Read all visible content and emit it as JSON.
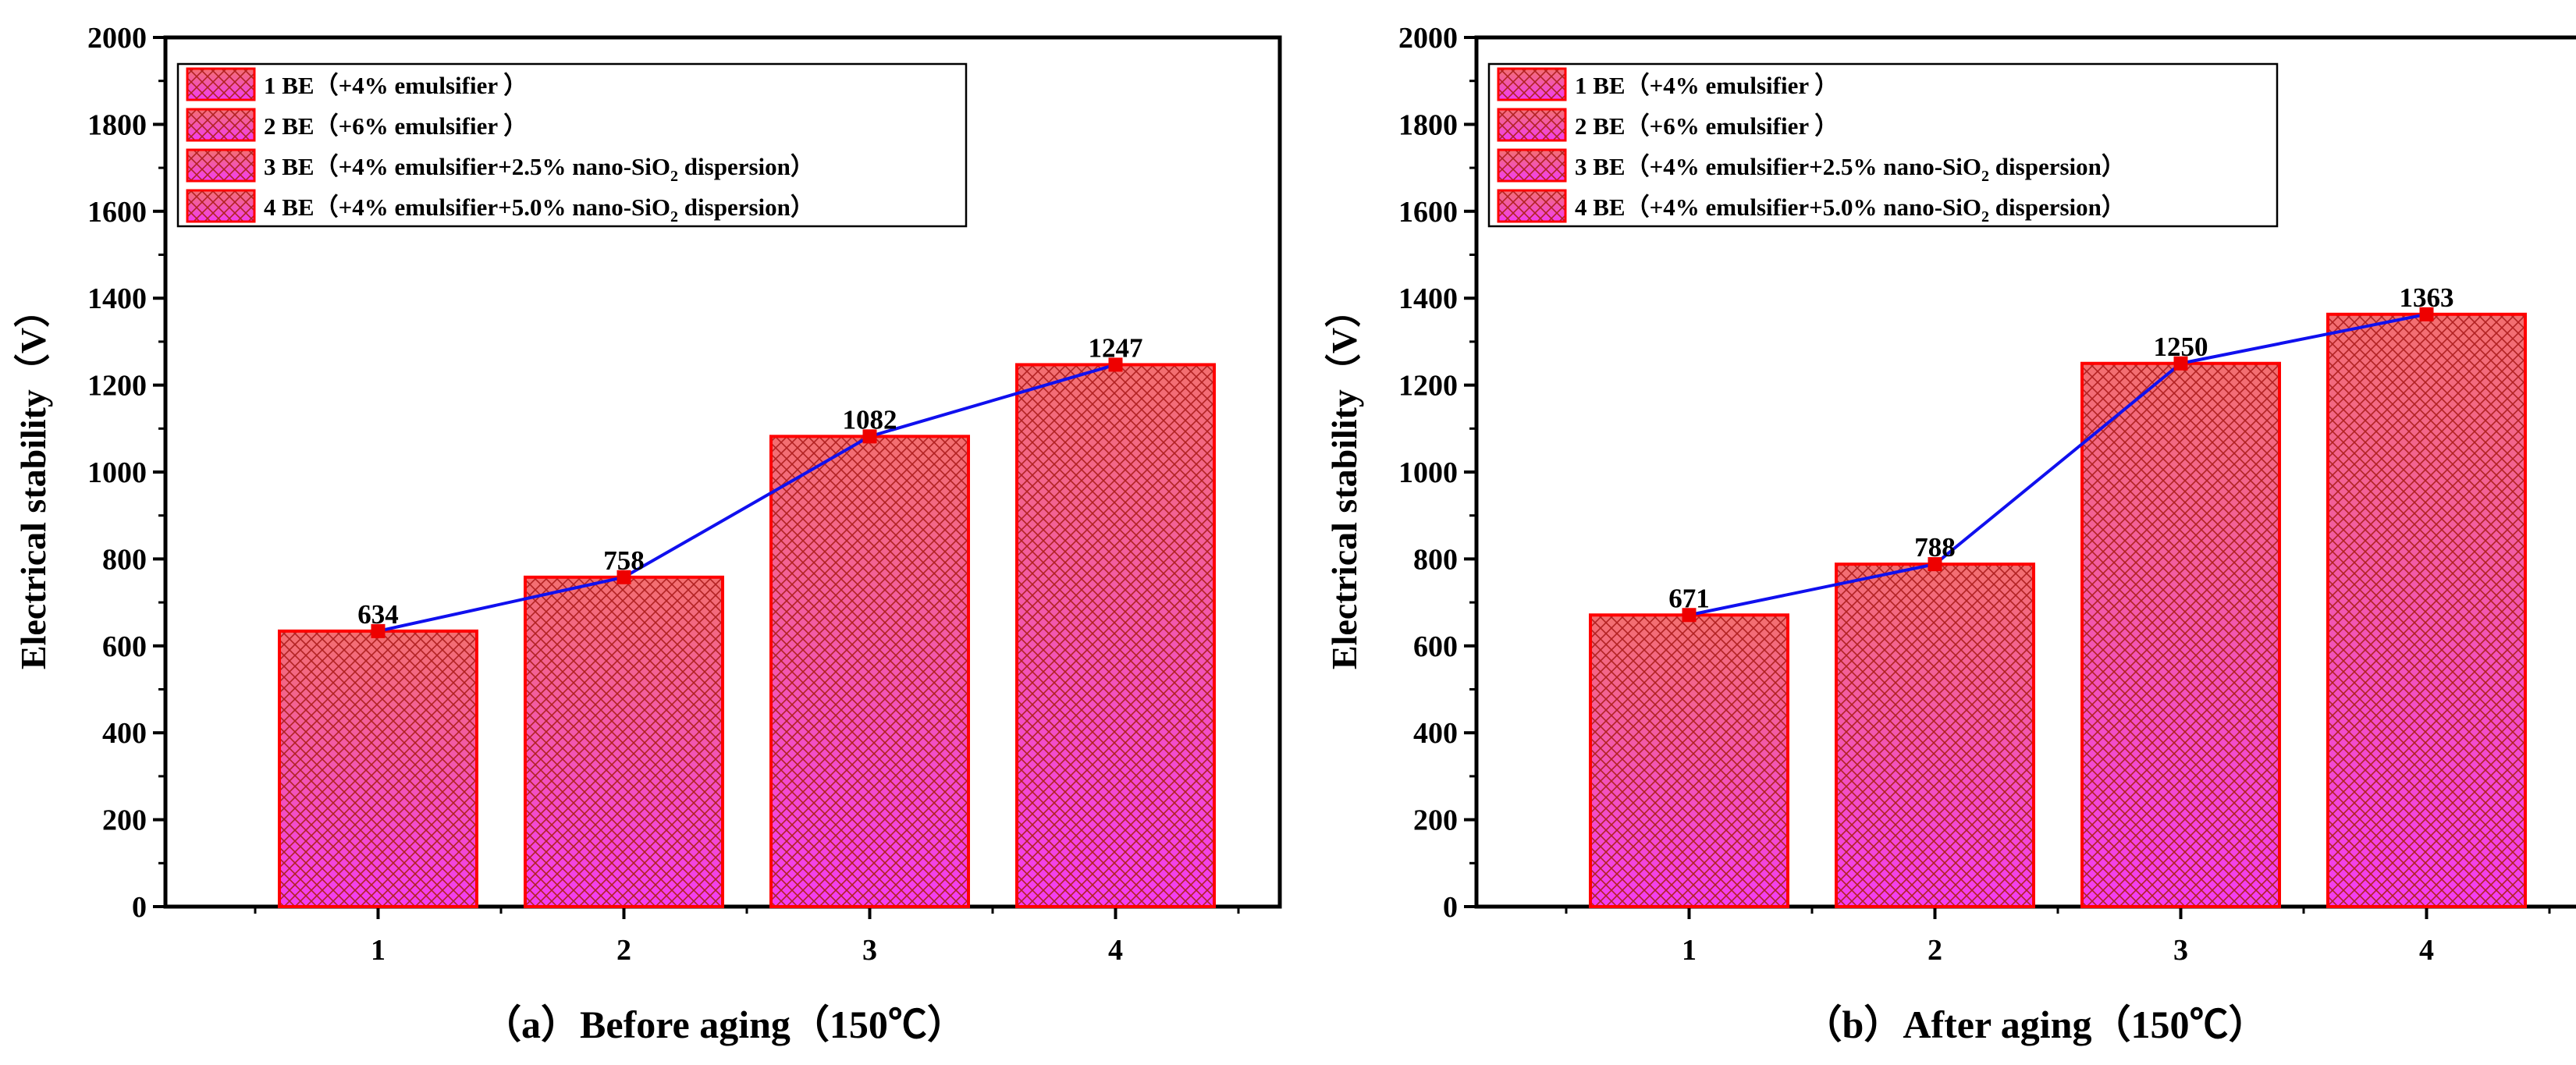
{
  "colors": {
    "bar_edge": "#ff0000",
    "bar_top": "#f36f6f",
    "bar_bottom": "#f23df2",
    "hatch": "#b22222",
    "line": "#1010ee",
    "marker": "#ee0000"
  },
  "legend_entries": [
    {
      "text": "1 BE（+4% emulsifier ）"
    },
    {
      "text": "2 BE（+6% emulsifier ）"
    },
    {
      "text": "3 BE（+4% emulsifier+2.5% nano-SiO",
      "sub": "2",
      "after": " dispersion）"
    },
    {
      "text": "4 BE（+4% emulsifier+5.0% nano-SiO",
      "sub": "2",
      "after": " dispersion）"
    }
  ],
  "chart_data": [
    {
      "type": "bar",
      "caption": "（a）Before aging（150℃）",
      "ylabel": "Electrical stability（V）",
      "xlabel": "",
      "categories": [
        "1",
        "2",
        "3",
        "4"
      ],
      "values": [
        634,
        758,
        1082,
        1247
      ],
      "data_labels": [
        "634",
        "758",
        "1082",
        "1247"
      ],
      "overlay_line": true,
      "ylim": [
        0,
        2000
      ],
      "yticks": [
        "0",
        "200",
        "400",
        "600",
        "800",
        "1000",
        "1200",
        "1400",
        "1600",
        "1800",
        "2000"
      ],
      "grid": false,
      "legend_position": "top-left"
    },
    {
      "type": "bar",
      "caption": "（b）After aging（150℃）",
      "ylabel": "Electrical stability（V）",
      "xlabel": "",
      "categories": [
        "1",
        "2",
        "3",
        "4"
      ],
      "values": [
        671,
        788,
        1250,
        1363
      ],
      "data_labels": [
        "671",
        "788",
        "1250",
        "1363"
      ],
      "overlay_line": true,
      "ylim": [
        0,
        2000
      ],
      "yticks": [
        "0",
        "200",
        "400",
        "600",
        "800",
        "1000",
        "1200",
        "1400",
        "1600",
        "1800",
        "2000"
      ],
      "grid": false,
      "legend_position": "top-left"
    }
  ]
}
